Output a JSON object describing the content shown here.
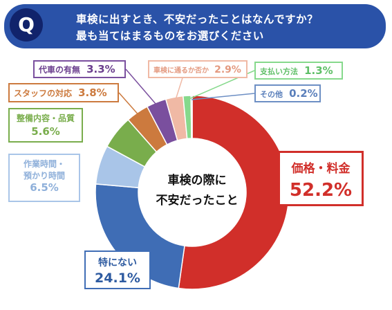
{
  "question": {
    "badge": "Q",
    "line1": "車検に出すとき、不安だったことはなんですか？",
    "line2": "最も当てはまるものをお選びください"
  },
  "chart_data": {
    "type": "pie",
    "center_label_line1": "車検の際に",
    "center_label_line2": "不安だったこと",
    "slices": [
      {
        "label": "価格・料金",
        "value": 52.2,
        "display": "52.2%",
        "color": "#d12f2a"
      },
      {
        "label": "特にない",
        "value": 24.1,
        "display": "24.1%",
        "color": "#3f6db5"
      },
      {
        "label": "作業時間・預かり時間",
        "value": 6.5,
        "display": "6.5%",
        "color": "#a9c5e8"
      },
      {
        "label": "整備内容・品質",
        "value": 5.6,
        "display": "5.6%",
        "color": "#79ad4c"
      },
      {
        "label": "スタッフの対応",
        "value": 3.8,
        "display": "3.8%",
        "color": "#cc7a3e"
      },
      {
        "label": "代車の有無",
        "value": 3.3,
        "display": "3.3%",
        "color": "#7a4f9e"
      },
      {
        "label": "車検に通るか否か",
        "value": 2.9,
        "display": "2.9%",
        "color": "#f0b9a5"
      },
      {
        "label": "支払い方法",
        "value": 1.3,
        "display": "1.3%",
        "color": "#86d98c"
      },
      {
        "label": "その他",
        "value": 0.2,
        "display": "0.2%",
        "color": "#6d8fc4"
      }
    ]
  }
}
